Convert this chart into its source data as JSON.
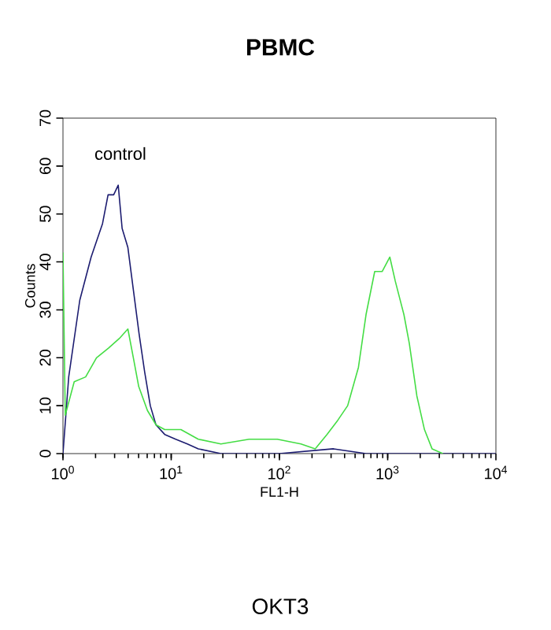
{
  "chart_data": {
    "type": "line",
    "title": "PBMC",
    "xlabel": "FL1-H",
    "ylabel": "Counts",
    "annotations": [
      "OKT3"
    ],
    "log": "x",
    "xlim": [
      1,
      10000
    ],
    "ylim": [
      0,
      70
    ],
    "xticks": [
      {
        "value": 1,
        "label": "10$^{0}$"
      },
      {
        "value": 10,
        "label": "10$^{1}$"
      },
      {
        "value": 100,
        "label": "10$^{2}$"
      },
      {
        "value": 1000,
        "label": "10$^{3}$"
      },
      {
        "value": 10000,
        "label": "10$^{4}$"
      }
    ],
    "yticks": [
      0,
      10,
      20,
      30,
      40,
      50,
      60,
      70
    ],
    "grid": false,
    "legend": false,
    "marker": "none",
    "line_style": "solid",
    "series": [
      {
        "name": "control",
        "color": "#1c1c70",
        "x": [
          1.0,
          1.13,
          1.43,
          1.82,
          2.32,
          2.61,
          2.94,
          3.24,
          3.52,
          3.98,
          4.48,
          5.05,
          5.69,
          6.41,
          7.23,
          8.71,
          11.0,
          14.1,
          17.8,
          28.8,
          100,
          316,
          631,
          1585,
          10000
        ],
        "values": [
          0,
          16,
          32,
          41,
          48,
          54,
          54,
          56,
          47,
          43,
          34,
          25,
          17,
          10,
          6,
          4,
          3,
          2,
          1,
          0,
          0,
          1,
          0,
          0,
          0
        ]
      },
      {
        "color": "#44dd44",
        "x": [
          1.0,
          1.05,
          1.27,
          1.62,
          2.04,
          2.63,
          3.31,
          3.98,
          4.47,
          5.01,
          6.03,
          7.24,
          8.71,
          12.3,
          17.8,
          28.8,
          52.5,
          95.5,
          158,
          214,
          275,
          347,
          427,
          537,
          631,
          759,
          891,
          1047,
          1175,
          1413,
          1585,
          1862,
          2188,
          2570,
          3236
        ],
        "values": [
          42,
          8,
          15,
          16,
          20,
          22,
          24,
          26,
          20,
          14,
          9,
          6,
          5,
          5,
          3,
          2,
          3,
          3,
          2,
          1,
          4,
          7,
          10,
          18,
          29,
          38,
          38,
          41,
          36,
          29,
          23,
          12,
          5,
          1,
          0
        ]
      }
    ]
  }
}
